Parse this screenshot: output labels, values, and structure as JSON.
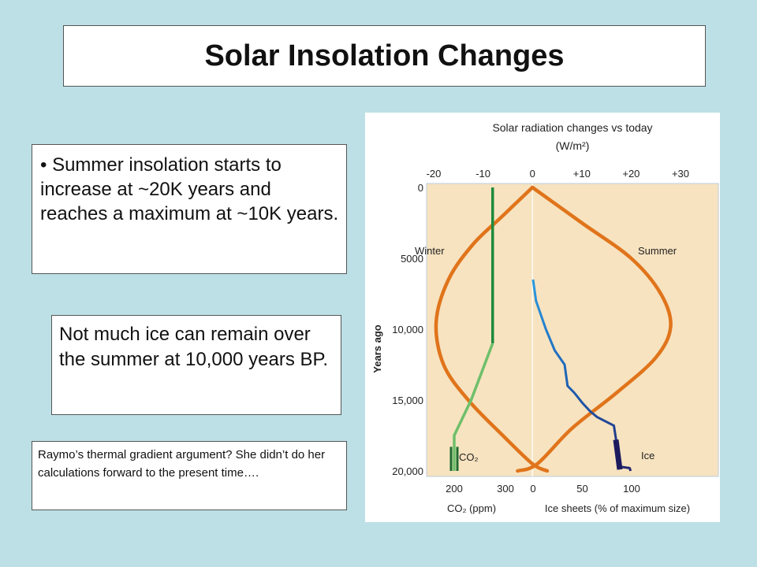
{
  "slide": {
    "title": "Solar Insolation Changes",
    "bullet_text": "• Summer insolation starts to increase at ~20K years and reaches a maximum at ~10K years.",
    "note_text": "Not much ice can remain over the summer at 10,000 years BP.",
    "question_text": "Raymo’s thermal gradient argument? She didn’t do her calculations forward to the present time…."
  },
  "chart_data": {
    "type": "line",
    "title": "Solar radiation changes vs today",
    "title_units": "(W/m²)",
    "ylabel": "Years ago",
    "ylim": [
      0,
      20000
    ],
    "y_reversed": true,
    "y_ticks": [
      "0",
      "5000",
      "10,000",
      "15,000",
      "20,000"
    ],
    "top_axis": {
      "range": [
        -20,
        30
      ],
      "ticks": [
        "-20",
        "-10",
        "0",
        "+10",
        "+20",
        "+30"
      ]
    },
    "bottom_axes": [
      {
        "label": "CO₂ (ppm)",
        "ticks": [
          "200",
          "300"
        ],
        "range": [
          180,
          310
        ]
      },
      {
        "label": "Ice sheets (% of maximum size)",
        "ticks": [
          "0",
          "50",
          "100"
        ],
        "range": [
          0,
          100
        ]
      }
    ],
    "colors": {
      "background": "#f7e3c0",
      "winter": "#e0741b",
      "summer": "#e0741b",
      "co2": "#1e8a3c",
      "ice": "#1f5fb5"
    },
    "series": [
      {
        "name": "Winter",
        "axis": "top",
        "points": [
          [
            0,
            0
          ],
          [
            -6,
            2000
          ],
          [
            -12,
            4000
          ],
          [
            -17,
            6500
          ],
          [
            -19.5,
            9500
          ],
          [
            -18,
            12500
          ],
          [
            -13,
            15000
          ],
          [
            -6,
            17500
          ],
          [
            0,
            19500
          ],
          [
            3,
            20000
          ]
        ]
      },
      {
        "name": "Summer",
        "axis": "top",
        "points": [
          [
            0,
            0
          ],
          [
            10,
            2500
          ],
          [
            20,
            5000
          ],
          [
            26,
            7500
          ],
          [
            28,
            9800
          ],
          [
            25,
            12000
          ],
          [
            17,
            14500
          ],
          [
            8,
            17000
          ],
          [
            1,
            19500
          ],
          [
            -3,
            20000
          ]
        ]
      },
      {
        "name": "CO₂",
        "axis": "bottom_co2",
        "points": [
          [
            275,
            0
          ],
          [
            275,
            5000
          ],
          [
            275,
            11000
          ],
          [
            233,
            15000
          ],
          [
            200,
            17500
          ],
          [
            200,
            20000
          ]
        ]
      },
      {
        "name": "Ice",
        "axis": "bottom_ice",
        "points": [
          [
            0,
            6500
          ],
          [
            3,
            8000
          ],
          [
            13,
            10000
          ],
          [
            22,
            11500
          ],
          [
            32,
            12500
          ],
          [
            35,
            14000
          ],
          [
            42,
            14500
          ],
          [
            50,
            15200
          ],
          [
            58,
            15800
          ],
          [
            65,
            16200
          ],
          [
            82,
            16800
          ],
          [
            84,
            17700
          ],
          [
            86,
            18500
          ],
          [
            87,
            19300
          ],
          [
            88,
            19700
          ],
          [
            98,
            19800
          ],
          [
            99,
            20000
          ]
        ]
      }
    ]
  }
}
